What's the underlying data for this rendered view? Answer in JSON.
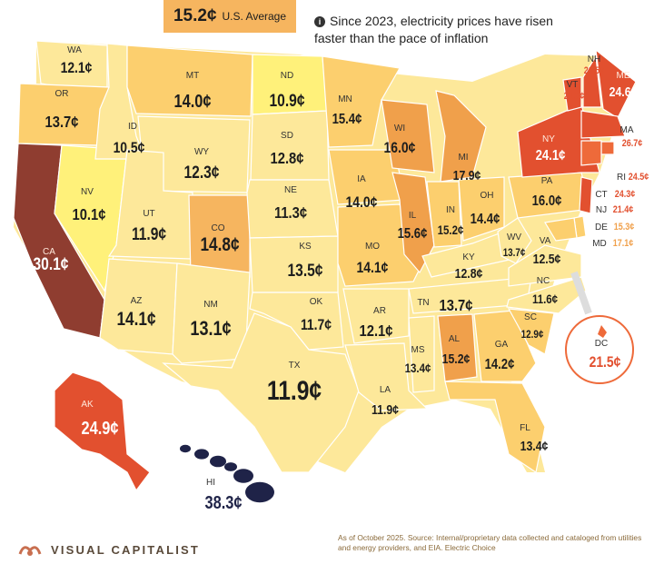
{
  "header": {
    "average_value": "15.2¢",
    "average_label": "U.S. Average",
    "note_text": "Since 2023, electricity prices have risen faster than the pace of inflation",
    "note_icon": "info-icon"
  },
  "footer": {
    "brand_name": "VISUAL CAPITALIST",
    "brand_icon": "visual-capitalist-logo-icon",
    "source_text": "As of October 2025. Source: Internal/proprietary data collected and cataloged from utilities and energy providers, and EIA. Electric Choice"
  },
  "colors": {
    "low": "#fff17a",
    "light": "#fde89a",
    "mid": "#fccf6e",
    "orange": "#f6b55f",
    "deep": "#f0a04b",
    "red": "#ee6a3a",
    "darkred": "#e2502f",
    "ca": "#8f3d30",
    "hi": "#1f2348",
    "background": "#ffffff"
  },
  "states": [
    {
      "abbr": "WA",
      "value": "12.1¢"
    },
    {
      "abbr": "OR",
      "value": "13.7¢"
    },
    {
      "abbr": "CA",
      "value": "30.1¢"
    },
    {
      "abbr": "NV",
      "value": "10.1¢"
    },
    {
      "abbr": "ID",
      "value": "10.5¢"
    },
    {
      "abbr": "MT",
      "value": "14.0¢"
    },
    {
      "abbr": "WY",
      "value": "12.3¢"
    },
    {
      "abbr": "UT",
      "value": "11.9¢"
    },
    {
      "abbr": "AZ",
      "value": "14.1¢"
    },
    {
      "abbr": "CO",
      "value": "14.8¢"
    },
    {
      "abbr": "NM",
      "value": "13.1¢"
    },
    {
      "abbr": "ND",
      "value": "10.9¢"
    },
    {
      "abbr": "SD",
      "value": "12.8¢"
    },
    {
      "abbr": "NE",
      "value": "11.3¢"
    },
    {
      "abbr": "KS",
      "value": "13.5¢"
    },
    {
      "abbr": "OK",
      "value": "11.7¢"
    },
    {
      "abbr": "TX",
      "value": "11.9¢"
    },
    {
      "abbr": "MN",
      "value": "15.4¢"
    },
    {
      "abbr": "IA",
      "value": "14.0¢"
    },
    {
      "abbr": "MO",
      "value": "14.1¢"
    },
    {
      "abbr": "AR",
      "value": "12.1¢"
    },
    {
      "abbr": "LA",
      "value": "11.9¢"
    },
    {
      "abbr": "WI",
      "value": "16.0¢"
    },
    {
      "abbr": "IL",
      "value": "15.6¢"
    },
    {
      "abbr": "MI",
      "value": "17.9¢"
    },
    {
      "abbr": "IN",
      "value": "15.2¢"
    },
    {
      "abbr": "OH",
      "value": "14.4¢"
    },
    {
      "abbr": "KY",
      "value": "12.8¢"
    },
    {
      "abbr": "TN",
      "value": "13.7¢"
    },
    {
      "abbr": "MS",
      "value": "13.4¢"
    },
    {
      "abbr": "AL",
      "value": "15.2¢"
    },
    {
      "abbr": "GA",
      "value": "14.2¢"
    },
    {
      "abbr": "FL",
      "value": "13.4¢"
    },
    {
      "abbr": "SC",
      "value": "12.9¢"
    },
    {
      "abbr": "NC",
      "value": "11.6¢"
    },
    {
      "abbr": "VA",
      "value": "12.5¢"
    },
    {
      "abbr": "WV",
      "value": "13.7¢"
    },
    {
      "abbr": "PA",
      "value": "16.0¢"
    },
    {
      "abbr": "NY",
      "value": "24.1¢"
    },
    {
      "abbr": "VT",
      "value": "21.5¢"
    },
    {
      "abbr": "NH",
      "value": "21.5¢"
    },
    {
      "abbr": "ME",
      "value": "24.6¢"
    },
    {
      "abbr": "MA",
      "value": "26.7¢"
    },
    {
      "abbr": "RI",
      "value": "24.5¢"
    },
    {
      "abbr": "CT",
      "value": "24.3¢"
    },
    {
      "abbr": "NJ",
      "value": "21.4¢"
    },
    {
      "abbr": "DE",
      "value": "15.3¢"
    },
    {
      "abbr": "MD",
      "value": "17.1¢"
    },
    {
      "abbr": "DC",
      "value": "21.5¢"
    },
    {
      "abbr": "AK",
      "value": "24.9¢"
    },
    {
      "abbr": "HI",
      "value": "38.3¢"
    }
  ]
}
